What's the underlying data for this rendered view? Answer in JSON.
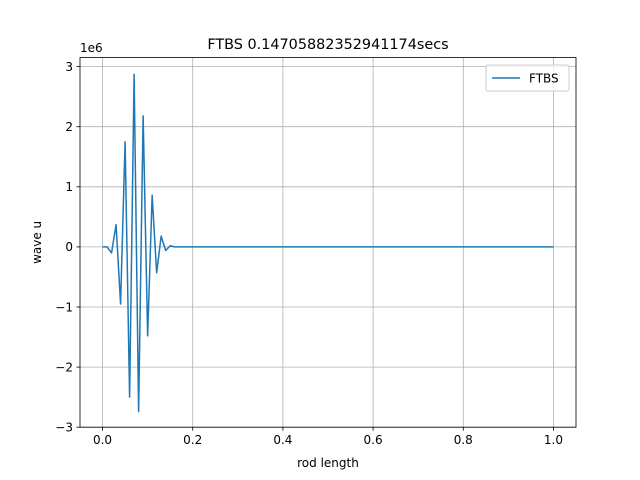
{
  "chart_data": {
    "type": "line",
    "title": "FTBS 0.14705882352941174secs",
    "xlabel": "rod length",
    "ylabel": "wave u",
    "y_offset_label": "1e6",
    "y_scale": 1000000,
    "xlim": [
      -0.05,
      1.05
    ],
    "ylim": [
      -3000000,
      3150000
    ],
    "grid": true,
    "legend_position": "top-right",
    "x_ticks": [
      0.0,
      0.2,
      0.4,
      0.6,
      0.8,
      1.0
    ],
    "x_tick_labels": [
      "0.0",
      "0.2",
      "0.4",
      "0.6",
      "0.8",
      "1.0"
    ],
    "y_ticks": [
      -3,
      -2,
      -1,
      0,
      1,
      2,
      3
    ],
    "y_tick_labels": [
      "−3",
      "−2",
      "−1",
      "0",
      "1",
      "2",
      "3"
    ],
    "series": [
      {
        "name": "FTBS",
        "color": "#1f77b4",
        "points": [
          [
            0.0,
            0
          ],
          [
            0.01,
            0
          ],
          [
            0.02,
            -100000
          ],
          [
            0.03,
            370000
          ],
          [
            0.04,
            -950000
          ],
          [
            0.05,
            1750000
          ],
          [
            0.06,
            -2500000
          ],
          [
            0.07,
            2870000
          ],
          [
            0.08,
            -2740000
          ],
          [
            0.09,
            2180000
          ],
          [
            0.1,
            -1480000
          ],
          [
            0.11,
            860000
          ],
          [
            0.12,
            -430000
          ],
          [
            0.13,
            180000
          ],
          [
            0.14,
            -60000
          ],
          [
            0.15,
            20000
          ],
          [
            0.16,
            0
          ],
          [
            0.2,
            0
          ],
          [
            0.3,
            0
          ],
          [
            0.4,
            0
          ],
          [
            0.5,
            0
          ],
          [
            0.6,
            0
          ],
          [
            0.7,
            0
          ],
          [
            0.8,
            0
          ],
          [
            0.9,
            0
          ],
          [
            1.0,
            0
          ]
        ]
      }
    ]
  }
}
